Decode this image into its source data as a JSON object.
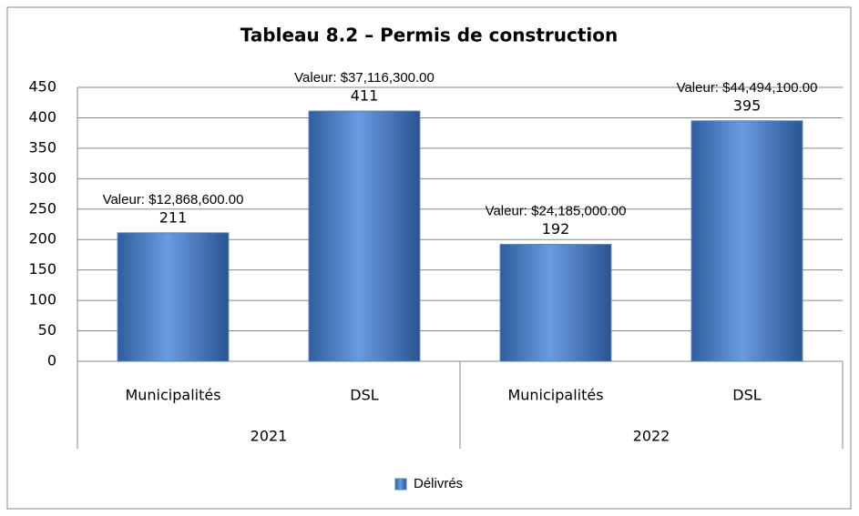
{
  "chart_data": {
    "type": "bar",
    "title": "Tableau 8.2 – Permis de construction",
    "categories": [
      "Municipalités",
      "DSL",
      "Municipalités",
      "DSL"
    ],
    "group_labels": [
      "2021",
      "2022"
    ],
    "series": [
      {
        "name": "Délivrés",
        "color": "#4f81bd",
        "values": [
          211,
          411,
          192,
          395
        ]
      }
    ],
    "annotations": [
      "Valeur: $12,868,600.00",
      "Valeur: $37,116,300.00",
      "Valeur: $24,185,000.00",
      "Valeur: $44,494,100.00"
    ],
    "ylim": [
      0,
      450
    ],
    "yticks": [
      0,
      50,
      100,
      150,
      200,
      250,
      300,
      350,
      400,
      450
    ],
    "grid": true,
    "legend": "bottom"
  }
}
